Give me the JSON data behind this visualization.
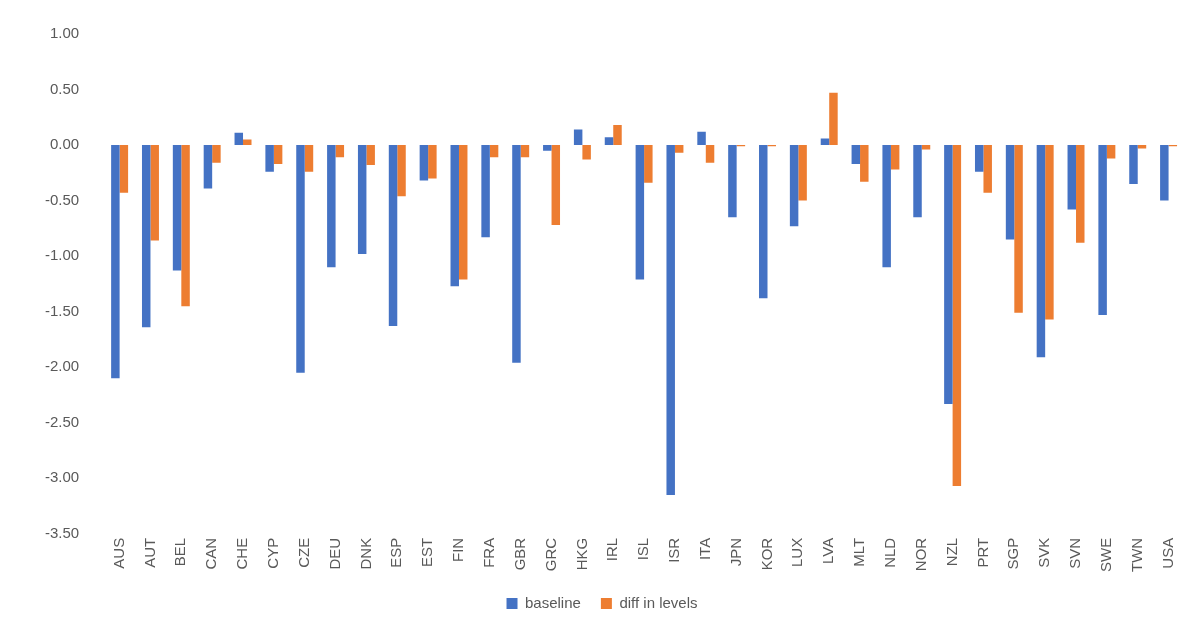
{
  "chart_data": {
    "type": "bar",
    "categories": [
      "AUS",
      "AUT",
      "BEL",
      "CAN",
      "CHE",
      "CYP",
      "CZE",
      "DEU",
      "DNK",
      "ESP",
      "EST",
      "FIN",
      "FRA",
      "GBR",
      "GRC",
      "HKG",
      "IRL",
      "ISL",
      "ISR",
      "ITA",
      "JPN",
      "KOR",
      "LUX",
      "LVA",
      "MLT",
      "NLD",
      "NOR",
      "NZL",
      "PRT",
      "SGP",
      "SVK",
      "SVN",
      "SWE",
      "TWN",
      "USA"
    ],
    "series": [
      {
        "name": "baseline",
        "color": "#4472c4",
        "values": [
          -2.1,
          -1.64,
          -1.13,
          -0.39,
          0.11,
          -0.24,
          -2.05,
          -1.1,
          -0.98,
          -1.63,
          -0.32,
          -1.27,
          -0.83,
          -1.96,
          -0.05,
          0.14,
          0.07,
          -1.21,
          -3.15,
          0.12,
          -0.65,
          -1.38,
          -0.73,
          0.06,
          -0.17,
          -1.1,
          -0.65,
          -2.33,
          -0.24,
          -0.85,
          -1.91,
          -0.58,
          -1.53,
          -0.35,
          -0.5
        ]
      },
      {
        "name": "diff in levels",
        "color": "#ed7d31",
        "values": [
          -0.43,
          -0.86,
          -1.45,
          -0.16,
          0.05,
          -0.17,
          -0.24,
          -0.11,
          -0.18,
          -0.46,
          -0.3,
          -1.21,
          -0.11,
          -0.11,
          -0.72,
          -0.13,
          0.18,
          -0.34,
          -0.07,
          -0.16,
          -0.01,
          -0.01,
          -0.5,
          0.47,
          -0.33,
          -0.22,
          -0.04,
          -3.07,
          -0.43,
          -1.51,
          -1.57,
          -0.88,
          -0.12,
          -0.03,
          -0.01
        ]
      }
    ],
    "ylim": [
      -3.5,
      1.0
    ],
    "yticks": [
      {
        "value": -3.5,
        "label": "-3.50"
      },
      {
        "value": -3,
        "label": "-3.00"
      },
      {
        "value": -2.5,
        "label": "-2.50"
      },
      {
        "value": -2,
        "label": "-2.00"
      },
      {
        "value": -1.5,
        "label": "-1.50"
      },
      {
        "value": -1,
        "label": "-1.00"
      },
      {
        "value": -0.5,
        "label": "-0.50"
      },
      {
        "value": 0,
        "label": "0.00"
      },
      {
        "value": 0.5,
        "label": "0.50"
      },
      {
        "value": 1,
        "label": "1.00"
      }
    ],
    "grid": false,
    "legend": "bottom"
  }
}
